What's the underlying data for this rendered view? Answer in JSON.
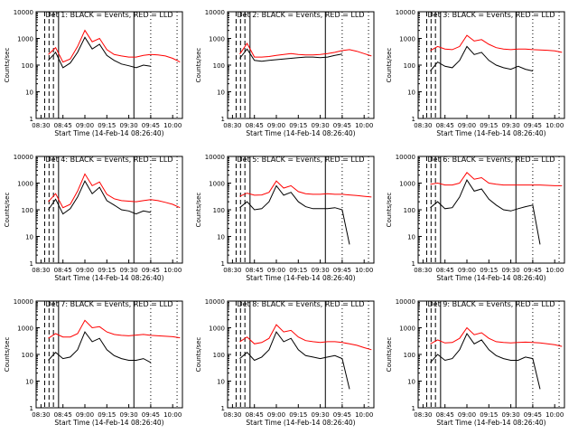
{
  "colors": {
    "events": "#000000",
    "lld": "#ff0000",
    "axes": "#000000",
    "background": "#ffffff"
  },
  "common": {
    "xlabel": "Start Time (14-Feb-14 08:26:40)",
    "ylabel": "Counts/sec",
    "xtick_labels": [
      "08:30",
      "08:45",
      "09:00",
      "09:15",
      "09:30",
      "09:45",
      "10:00"
    ],
    "ytick_labels": [
      "1",
      "10",
      "100",
      "1000",
      "10000"
    ]
  },
  "chart_data": [
    {
      "type": "line",
      "title": "Det 1: BLACK = Events, RED = LLD",
      "xlabel": "Start Time (14-Feb-14 08:26:40)",
      "ylabel": "Counts/sec",
      "yscale": "log",
      "ylim": [
        1,
        10000
      ],
      "xlim": [
        "08:26:40",
        "10:06:40"
      ],
      "x": [
        "08:35",
        "08:40",
        "08:45",
        "08:50",
        "08:55",
        "09:00",
        "09:05",
        "09:10",
        "09:15",
        "09:20",
        "09:25",
        "09:30",
        "09:35",
        "09:40",
        "09:45",
        "09:50",
        "09:55",
        "10:00",
        "10:05"
      ],
      "series": [
        {
          "name": "BLACK = Events",
          "values": [
            150,
            300,
            80,
            120,
            300,
            1100,
            400,
            600,
            230,
            150,
            110,
            95,
            80,
            100,
            90,
            null,
            null,
            null,
            null
          ]
        },
        {
          "name": "RED = LLD",
          "values": [
            250,
            450,
            130,
            170,
            500,
            2000,
            750,
            1000,
            380,
            250,
            220,
            200,
            200,
            230,
            250,
            240,
            220,
            180,
            130
          ]
        }
      ]
    },
    {
      "type": "line",
      "title": "Det 2: BLACK = Events, RED = LLD",
      "xlabel": "Start Time (14-Feb-14 08:26:40)",
      "ylabel": "Counts/sec",
      "yscale": "log",
      "ylim": [
        1,
        10000
      ],
      "xlim": [
        "08:26:40",
        "10:06:40"
      ],
      "x": [
        "08:35",
        "08:40",
        "08:45",
        "08:50",
        "08:55",
        "09:00",
        "09:05",
        "09:10",
        "09:15",
        "09:20",
        "09:25",
        "09:30",
        "09:35",
        "09:40",
        "09:45",
        "09:50",
        "09:55",
        "10:00",
        "10:05"
      ],
      "series": [
        {
          "name": "BLACK = Events",
          "values": [
            180,
            400,
            150,
            140,
            150,
            160,
            170,
            180,
            190,
            200,
            200,
            190,
            200,
            230,
            260,
            null,
            null,
            null,
            null
          ]
        },
        {
          "name": "RED = LLD",
          "values": [
            260,
            650,
            200,
            200,
            210,
            230,
            250,
            270,
            250,
            240,
            240,
            250,
            270,
            300,
            350,
            380,
            330,
            270,
            220
          ]
        }
      ]
    },
    {
      "type": "line",
      "title": "Det 3: BLACK = Events, RED = LLD",
      "xlabel": "Start Time (14-Feb-14 08:26:40)",
      "ylabel": "Counts/sec",
      "yscale": "log",
      "ylim": [
        1,
        10000
      ],
      "xlim": [
        "08:26:40",
        "10:06:40"
      ],
      "x": [
        "08:35",
        "08:40",
        "08:45",
        "08:50",
        "08:55",
        "09:00",
        "09:05",
        "09:10",
        "09:15",
        "09:20",
        "09:25",
        "09:30",
        "09:35",
        "09:40",
        "09:45",
        "09:50",
        "09:55",
        "10:00",
        "10:05"
      ],
      "series": [
        {
          "name": "BLACK = Events",
          "values": [
            60,
            130,
            90,
            80,
            150,
            500,
            250,
            300,
            150,
            100,
            80,
            70,
            90,
            70,
            60,
            null,
            null,
            null,
            null
          ]
        },
        {
          "name": "RED = LLD",
          "values": [
            350,
            500,
            400,
            380,
            500,
            1300,
            800,
            900,
            600,
            450,
            400,
            380,
            400,
            400,
            380,
            370,
            360,
            340,
            300
          ]
        }
      ]
    },
    {
      "type": "line",
      "title": "Det 4: BLACK = Events, RED = LLD",
      "xlabel": "Start Time (14-Feb-14 08:26:40)",
      "ylabel": "Counts/sec",
      "yscale": "log",
      "ylim": [
        1,
        10000
      ],
      "xlim": [
        "08:26:40",
        "10:06:40"
      ],
      "x": [
        "08:35",
        "08:40",
        "08:45",
        "08:50",
        "08:55",
        "09:00",
        "09:05",
        "09:10",
        "09:15",
        "09:20",
        "09:25",
        "09:30",
        "09:35",
        "09:40",
        "09:45",
        "09:50",
        "09:55",
        "10:00",
        "10:05"
      ],
      "series": [
        {
          "name": "BLACK = Events",
          "values": [
            100,
            250,
            70,
            110,
            300,
            1200,
            400,
            700,
            220,
            150,
            100,
            90,
            70,
            90,
            80,
            null,
            null,
            null,
            null
          ]
        },
        {
          "name": "RED = LLD",
          "values": [
            200,
            400,
            120,
            160,
            500,
            2200,
            800,
            1100,
            380,
            260,
            220,
            210,
            200,
            220,
            240,
            220,
            190,
            160,
            120
          ]
        }
      ]
    },
    {
      "type": "line",
      "title": "Det 5: BLACK = Events, RED = LLD",
      "xlabel": "Start Time (14-Feb-14 08:26:40)",
      "ylabel": "Counts/sec",
      "yscale": "log",
      "ylim": [
        1,
        10000
      ],
      "xlim": [
        "08:26:40",
        "10:06:40"
      ],
      "x": [
        "08:35",
        "08:40",
        "08:45",
        "08:50",
        "08:55",
        "09:00",
        "09:05",
        "09:10",
        "09:15",
        "09:20",
        "09:25",
        "09:30",
        "09:35",
        "09:40",
        "09:45",
        "09:50",
        "09:55",
        "10:00",
        "10:05"
      ],
      "series": [
        {
          "name": "BLACK = Events",
          "values": [
            120,
            200,
            100,
            110,
            200,
            800,
            350,
            450,
            200,
            130,
            110,
            110,
            110,
            120,
            100,
            5,
            null,
            null,
            null
          ]
        },
        {
          "name": "RED = LLD",
          "values": [
            320,
            420,
            350,
            360,
            450,
            1200,
            650,
            800,
            480,
            400,
            380,
            380,
            400,
            380,
            380,
            360,
            340,
            320,
            300
          ]
        }
      ]
    },
    {
      "type": "line",
      "title": "Det 6: BLACK = Events, RED = LLD",
      "xlabel": "Start Time (14-Feb-14 08:26:40)",
      "ylabel": "Counts/sec",
      "yscale": "log",
      "ylim": [
        1,
        10000
      ],
      "xlim": [
        "08:26:40",
        "10:06:40"
      ],
      "x": [
        "08:35",
        "08:40",
        "08:45",
        "08:50",
        "08:55",
        "09:00",
        "09:05",
        "09:10",
        "09:15",
        "09:20",
        "09:25",
        "09:30",
        "09:35",
        "09:40",
        "09:45",
        "09:50",
        "09:55",
        "10:00",
        "10:05"
      ],
      "series": [
        {
          "name": "BLACK = Events",
          "values": [
            120,
            200,
            110,
            120,
            300,
            1300,
            500,
            600,
            250,
            150,
            100,
            90,
            110,
            130,
            150,
            5,
            null,
            null,
            null
          ]
        },
        {
          "name": "RED = LLD",
          "values": [
            900,
            1000,
            850,
            850,
            1000,
            2500,
            1400,
            1600,
            1000,
            900,
            850,
            850,
            850,
            850,
            850,
            850,
            820,
            800,
            800
          ]
        }
      ]
    },
    {
      "type": "line",
      "title": "Det 7: BLACK = Events, RED = LLD",
      "xlabel": "Start Time (14-Feb-14 08:26:40)",
      "ylabel": "Counts/sec",
      "yscale": "log",
      "ylim": [
        1,
        10000
      ],
      "xlim": [
        "08:26:40",
        "10:06:40"
      ],
      "x": [
        "08:35",
        "08:40",
        "08:45",
        "08:50",
        "08:55",
        "09:00",
        "09:05",
        "09:10",
        "09:15",
        "09:20",
        "09:25",
        "09:30",
        "09:35",
        "09:40",
        "09:45",
        "09:50",
        "09:55",
        "10:00",
        "10:05"
      ],
      "series": [
        {
          "name": "BLACK = Events",
          "values": [
            60,
            120,
            70,
            80,
            150,
            700,
            300,
            400,
            150,
            90,
            70,
            60,
            60,
            70,
            50,
            null,
            null,
            null,
            null
          ]
        },
        {
          "name": "RED = LLD",
          "values": [
            400,
            600,
            450,
            450,
            600,
            1900,
            1000,
            1100,
            700,
            560,
            520,
            500,
            530,
            560,
            520,
            500,
            480,
            460,
            420
          ]
        }
      ]
    },
    {
      "type": "line",
      "title": "Det 8: BLACK = Events, RED = LLD",
      "xlabel": "Start Time (14-Feb-14 08:26:40)",
      "ylabel": "Counts/sec",
      "yscale": "log",
      "ylim": [
        1,
        10000
      ],
      "xlim": [
        "08:26:40",
        "10:06:40"
      ],
      "x": [
        "08:35",
        "08:40",
        "08:45",
        "08:50",
        "08:55",
        "09:00",
        "09:05",
        "09:10",
        "09:15",
        "09:20",
        "09:25",
        "09:30",
        "09:35",
        "09:40",
        "09:45",
        "09:50",
        "09:55",
        "10:00",
        "10:05"
      ],
      "series": [
        {
          "name": "BLACK = Events",
          "values": [
            70,
            120,
            60,
            80,
            150,
            700,
            300,
            400,
            150,
            90,
            80,
            70,
            80,
            90,
            70,
            5,
            null,
            null,
            null
          ]
        },
        {
          "name": "RED = LLD",
          "values": [
            300,
            450,
            250,
            280,
            400,
            1300,
            700,
            800,
            450,
            330,
            300,
            280,
            300,
            300,
            280,
            250,
            220,
            180,
            150
          ]
        }
      ]
    },
    {
      "type": "line",
      "title": "Det 9: BLACK = Events, RED = LLD",
      "xlabel": "Start Time (14-Feb-14 08:26:40)",
      "ylabel": "Counts/sec",
      "yscale": "log",
      "ylim": [
        1,
        10000
      ],
      "xlim": [
        "08:26:40",
        "10:06:40"
      ],
      "x": [
        "08:35",
        "08:40",
        "08:45",
        "08:50",
        "08:55",
        "09:00",
        "09:05",
        "09:10",
        "09:15",
        "09:20",
        "09:25",
        "09:30",
        "09:35",
        "09:40",
        "09:45",
        "09:50",
        "09:55",
        "10:00",
        "10:05"
      ],
      "series": [
        {
          "name": "BLACK = Events",
          "values": [
            50,
            100,
            60,
            70,
            150,
            600,
            250,
            350,
            150,
            90,
            70,
            60,
            60,
            80,
            70,
            5,
            null,
            null,
            null
          ]
        },
        {
          "name": "RED = LLD",
          "values": [
            250,
            350,
            270,
            280,
            400,
            1000,
            550,
            650,
            400,
            300,
            280,
            270,
            280,
            290,
            280,
            270,
            250,
            230,
            200
          ]
        }
      ]
    }
  ]
}
